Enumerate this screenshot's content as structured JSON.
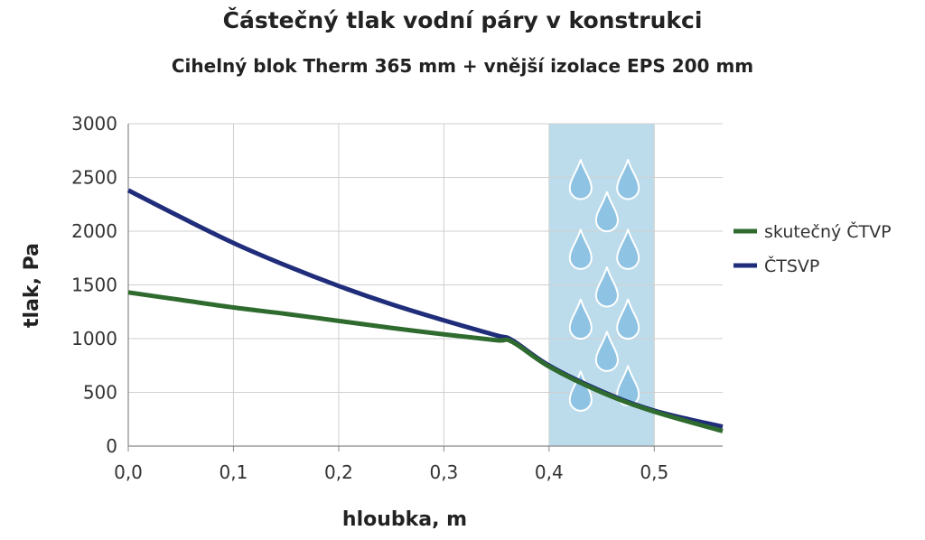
{
  "chart_data": {
    "type": "line",
    "title": "Částečný tlak vodní páry v konstrukci",
    "subtitle": "Cihelný blok Therm 365 mm + vnější izolace EPS 200 mm",
    "xlabel": "hloubka, m",
    "ylabel": "tlak, Pa",
    "xlim": [
      0,
      0.565
    ],
    "ylim": [
      0,
      3000
    ],
    "x_ticks": [
      "0,0",
      "0,1",
      "0,2",
      "0,3",
      "0,4",
      "0,5"
    ],
    "y_ticks": [
      "0",
      "500",
      "1000",
      "1500",
      "2000",
      "2500",
      "3000"
    ],
    "x_tick_values": [
      0,
      0.1,
      0.2,
      0.3,
      0.4,
      0.5
    ],
    "y_tick_values": [
      0,
      500,
      1000,
      1500,
      2000,
      2500,
      3000
    ],
    "grid": true,
    "legend_position": "right",
    "condensation_zone": {
      "x_range": [
        0.4,
        0.5
      ],
      "color": "#bcdcec"
    },
    "series": [
      {
        "name": "skutečný ČTVP",
        "color": "#2f6b2f",
        "x": [
          0.0,
          0.05,
          0.1,
          0.15,
          0.2,
          0.25,
          0.3,
          0.35,
          0.365,
          0.4,
          0.45,
          0.5,
          0.565
        ],
        "y": [
          1430,
          1360,
          1290,
          1230,
          1165,
          1100,
          1040,
          985,
          970,
          740,
          500,
          320,
          140
        ]
      },
      {
        "name": "ČTSVP",
        "color": "#1f2d7a",
        "x": [
          0.0,
          0.05,
          0.1,
          0.15,
          0.2,
          0.25,
          0.3,
          0.35,
          0.365,
          0.4,
          0.45,
          0.5,
          0.565
        ],
        "y": [
          2380,
          2130,
          1890,
          1680,
          1490,
          1320,
          1170,
          1030,
          985,
          750,
          510,
          330,
          180
        ]
      }
    ]
  }
}
